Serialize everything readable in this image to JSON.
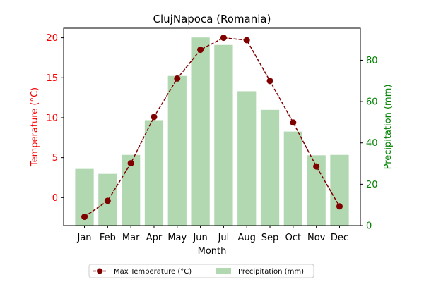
{
  "chart_data": {
    "type": "bar+line",
    "title": "ClujNapoca (Romania)",
    "xlabel": "Month",
    "ylabel_left": "Temperature (°C)",
    "ylabel_right": "Precipitation (mm)",
    "categories": [
      "Jan",
      "Feb",
      "Mar",
      "Apr",
      "May",
      "Jun",
      "Jul",
      "Aug",
      "Sep",
      "Oct",
      "Nov",
      "Dec"
    ],
    "ylim_left": [
      -3.5,
      21.2
    ],
    "ylim_right": [
      0,
      95.5
    ],
    "yticks_left": [
      0,
      5,
      10,
      15,
      20
    ],
    "yticks_right": [
      0,
      20,
      40,
      60,
      80
    ],
    "colors": {
      "temperature": "#800000",
      "precipitation_bar": "#b1d8b1",
      "left_axis": "#ff0000",
      "right_axis": "#008000"
    },
    "series": [
      {
        "name": "Max Temperature (°C)",
        "kind": "line",
        "axis": "left",
        "values": [
          -2.4,
          -0.4,
          4.3,
          10.1,
          14.9,
          18.5,
          20.0,
          19.7,
          14.6,
          9.4,
          3.9,
          -1.1
        ]
      },
      {
        "name": "Precipitation (mm)",
        "kind": "bar",
        "axis": "right",
        "values": [
          27.4,
          25.0,
          34.2,
          51.0,
          72.4,
          91.0,
          87.4,
          65.0,
          56.0,
          45.5,
          34.0,
          34.2
        ]
      }
    ],
    "legend_position": "bottom-center"
  }
}
